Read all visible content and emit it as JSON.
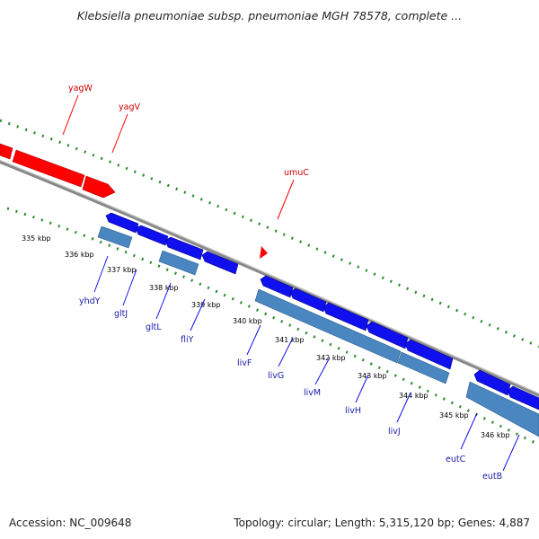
{
  "title": "Klebsiella pneumoniae subsp. pneumoniae MGH 78578, complete ...",
  "footer": {
    "accession": "Accession: NC_009648",
    "summary": "Topology: circular; Length: 5,315,120 bp; Genes: 4,887"
  },
  "colors": {
    "backbone": "#888888",
    "tick": "#2e8b2e",
    "forward_gene": "#ff0000",
    "forward_label": "#cc0000",
    "reverse_gene": "#1010ee",
    "reverse_cds": "#4a86bf",
    "reverse_label": "#1a1aaa"
  },
  "scale_labels": [
    "335 kbp",
    "336 kbp",
    "337 kbp",
    "338 kbp",
    "339 kbp",
    "340 kbp",
    "341 kbp",
    "342 kbp",
    "343 kbp",
    "344 kbp",
    "345 kbp",
    "346 kbp"
  ],
  "forward_genes": [
    "yagW",
    "yagV",
    "umuC"
  ],
  "reverse_genes": [
    "yhdY",
    "gltJ",
    "gltL",
    "fliY",
    "livF",
    "livG",
    "livM",
    "livH",
    "livJ",
    "eutC",
    "eutB"
  ]
}
